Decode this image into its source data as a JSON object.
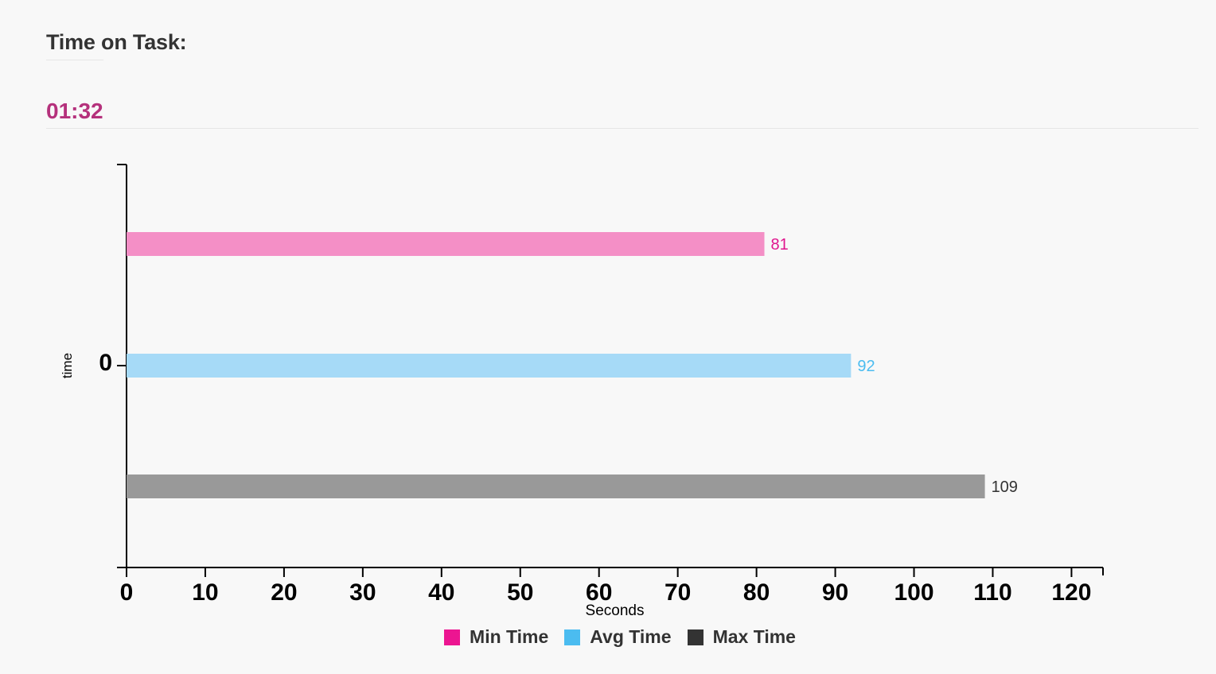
{
  "header": {
    "title": "Time on Task:",
    "value": "01:32"
  },
  "colors": {
    "accent": "#b5317c",
    "axis": "#000000"
  },
  "chart_data": {
    "type": "bar",
    "orientation": "horizontal",
    "title": "",
    "xlabel": "Seconds",
    "ylabel": "time",
    "categories": [
      "0"
    ],
    "xlim": [
      0,
      124
    ],
    "xticks": [
      0,
      10,
      20,
      30,
      40,
      50,
      60,
      70,
      80,
      90,
      100,
      110,
      120
    ],
    "grid": false,
    "legend_position": "bottom-center",
    "series": [
      {
        "name": "Min Time",
        "values": [
          81
        ],
        "bar_color": "#f48fc6",
        "label_color": "#e0158e",
        "legend_color": "#ec1591"
      },
      {
        "name": "Avg Time",
        "values": [
          92
        ],
        "bar_color": "#a6daf7",
        "label_color": "#4bbcf0",
        "legend_color": "#4bbcf0"
      },
      {
        "name": "Max Time",
        "values": [
          109
        ],
        "bar_color": "#999999",
        "label_color": "#333333",
        "legend_color": "#333333"
      }
    ]
  }
}
